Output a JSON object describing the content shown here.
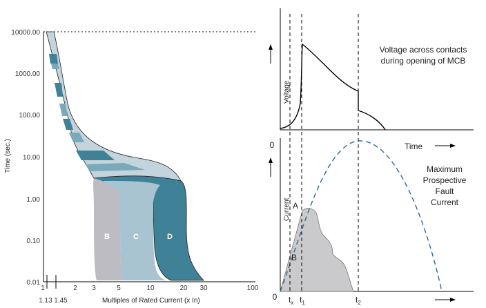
{
  "left_chart": {
    "y_ticks": [
      "10000.00",
      "1000.00",
      "100.00",
      "10.00",
      "1.00",
      "0.10",
      "0.01"
    ],
    "x_ticks": [
      "1",
      "2",
      "3",
      "5",
      "10",
      "20",
      "30",
      "100"
    ],
    "x_extra_ticks": [
      "1.13",
      "1.45"
    ],
    "y_label": "Time (sec.)",
    "x_label": "Multiples of Rated Current (x In)",
    "zones": [
      "B",
      "C",
      "D"
    ],
    "colors": {
      "B": "#bcbcc2",
      "C": "#a8c4d0",
      "D": "#3f8197",
      "band_dark": "#3f8197",
      "band_mid": "#7aa9ba",
      "band_light": "#c3d4dc"
    }
  },
  "top_chart": {
    "y_label": "Voltage",
    "x_label": "Time",
    "zero": "0",
    "note_line1": "Voltage across contacts",
    "note_line2": "during opening of MCB"
  },
  "bottom_chart": {
    "y_label": "Current",
    "zero": "0",
    "point_a": "A",
    "point_b": "B",
    "t_x": "t",
    "t_x_sub": "x",
    "t_1": "t",
    "t_1_sub": "1",
    "t_2": "t",
    "t_2_sub": "2",
    "note_line1": "Maximum",
    "note_line2": "Prospective",
    "note_line3": "Fault",
    "note_line4": "Current",
    "colors": {
      "fill": "#cacacd",
      "dash_curve": "#2f6a84"
    }
  }
}
